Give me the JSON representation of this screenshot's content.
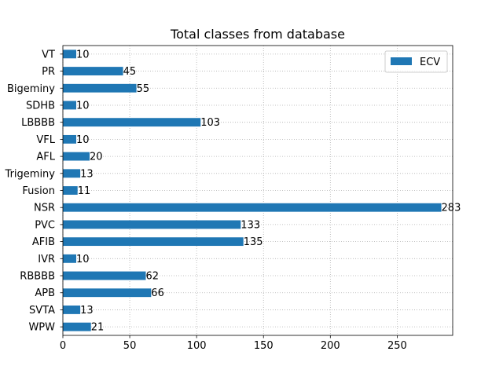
{
  "chart_data": {
    "type": "bar",
    "orientation": "horizontal",
    "title": "Total classes from database",
    "xlabel": "",
    "ylabel": "",
    "categories": [
      "VT",
      "PR",
      "Bigeminy",
      "SDHB",
      "LBBBB",
      "VFL",
      "AFL",
      "Trigeminy",
      "Fusion",
      "NSR",
      "PVC",
      "AFIB",
      "IVR",
      "RBBBB",
      "APB",
      "SVTA",
      "WPW"
    ],
    "series": [
      {
        "name": "ECV",
        "color": "#1f77b4",
        "values": [
          10,
          45,
          55,
          10,
          103,
          10,
          20,
          13,
          11,
          283,
          133,
          135,
          10,
          62,
          66,
          13,
          21
        ]
      }
    ],
    "data_labels": [
      "10",
      "45",
      "55",
      "10",
      "103",
      "10",
      "20",
      "13",
      "11",
      "283",
      "133",
      "135",
      "10",
      "62",
      "66",
      "13",
      "21"
    ],
    "x_ticks": [
      0,
      50,
      100,
      150,
      200,
      250
    ],
    "x_tick_labels": [
      "0",
      "50",
      "100",
      "150",
      "200",
      "250"
    ],
    "xlim": [
      0,
      291.5
    ],
    "grid": true,
    "grid_style": "dotted",
    "legend_position": "top-right"
  }
}
